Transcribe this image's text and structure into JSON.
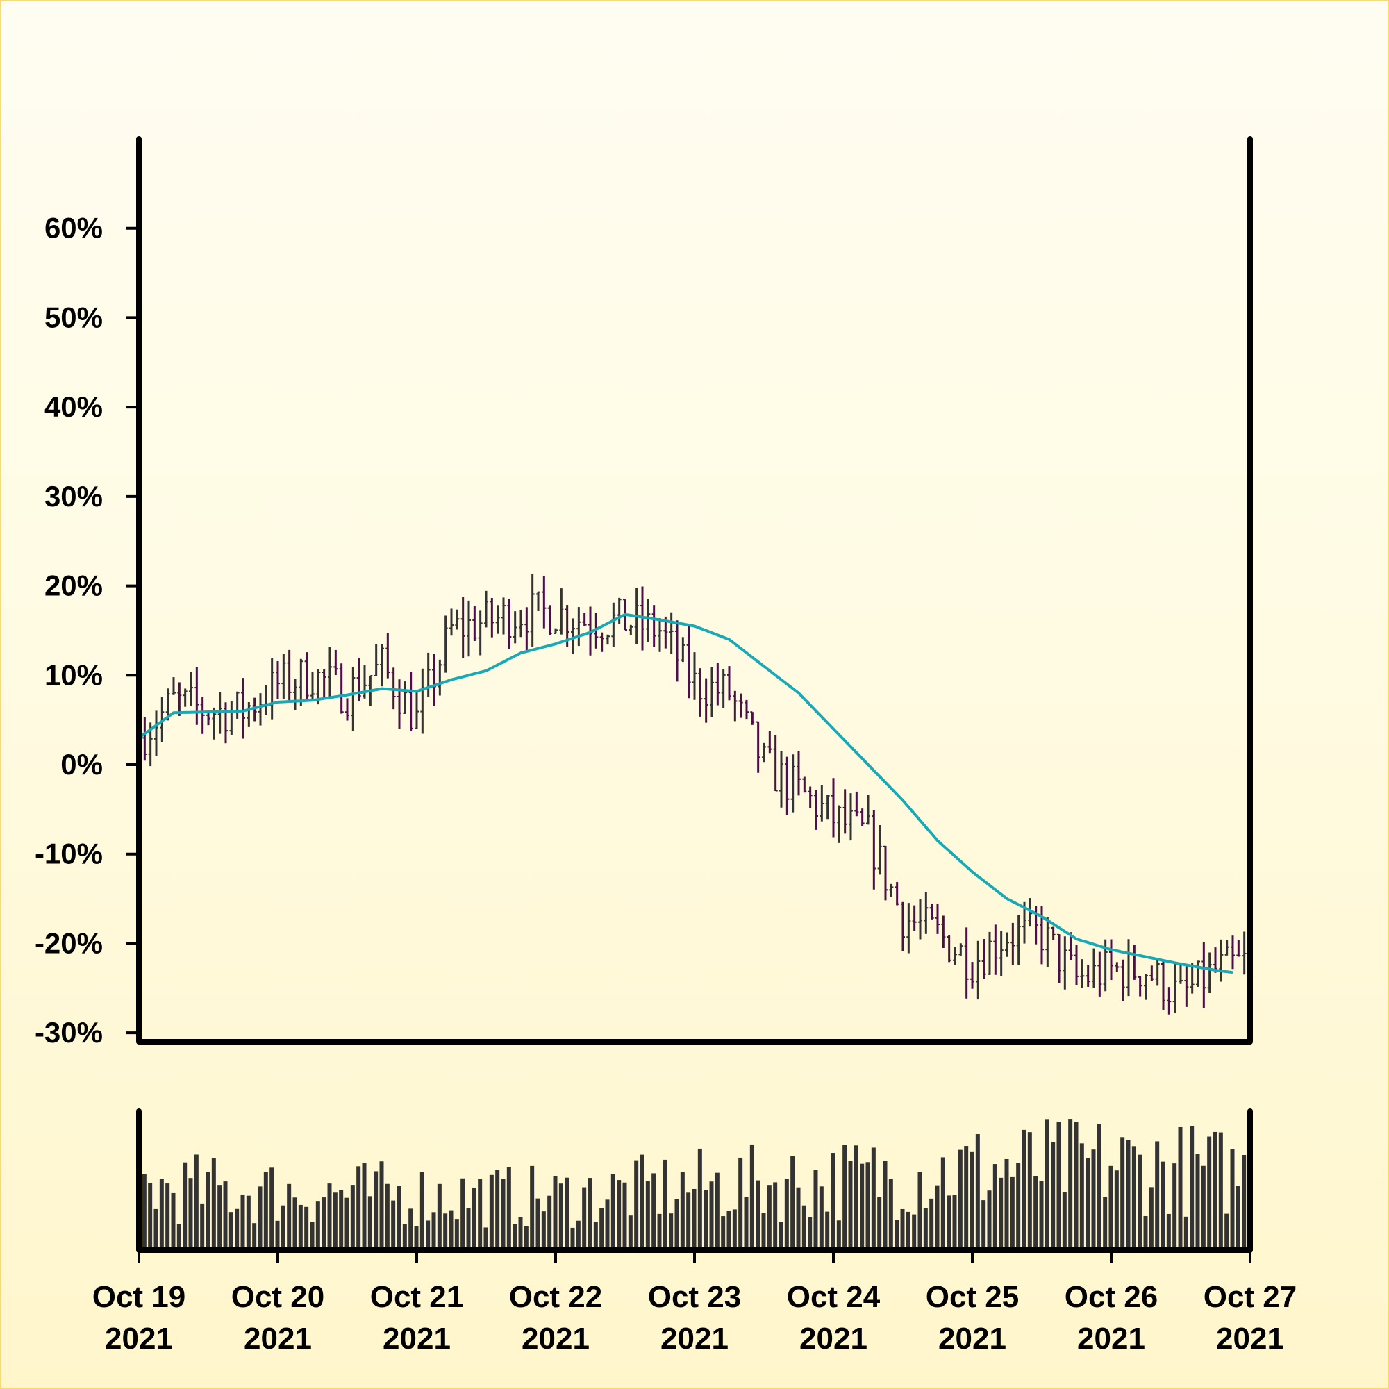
{
  "chart_data": [
    {
      "type": "ohlc",
      "y_axis": {
        "format": "percent",
        "ylim": [
          -31,
          70
        ],
        "ticks": [
          -30,
          -20,
          -10,
          0,
          10,
          20,
          30,
          40,
          50,
          60
        ],
        "tick_labels": [
          "-30%",
          "-20%",
          "-10%",
          "0%",
          "10%",
          "20%",
          "30%",
          "40%",
          "50%",
          "60%"
        ]
      },
      "x_axis": {
        "range": [
          "2021-10-19 00:00",
          "2021-10-27 00:00"
        ],
        "ticks": [
          "2021-10-19",
          "2021-10-20",
          "2021-10-21",
          "2021-10-22",
          "2021-10-23",
          "2021-10-24",
          "2021-10-25",
          "2021-10-26",
          "2021-10-27"
        ],
        "tick_labels": [
          [
            "Oct 19",
            "2021"
          ],
          [
            "Oct 20",
            "2021"
          ],
          [
            "Oct 21",
            "2021"
          ],
          [
            "Oct 22",
            "2021"
          ],
          [
            "Oct 23",
            "2021"
          ],
          [
            "Oct 24",
            "2021"
          ],
          [
            "Oct 25",
            "2021"
          ],
          [
            "Oct 26",
            "2021"
          ],
          [
            "Oct 27",
            "2021"
          ]
        ]
      },
      "bar_interval_hours": 1,
      "close_path_key_points": [
        [
          "2021-10-19 00:00",
          3
        ],
        [
          "2021-10-19 06:00",
          7
        ],
        [
          "2021-10-19 12:00",
          6
        ],
        [
          "2021-10-19 18:00",
          6
        ],
        [
          "2021-10-20 00:00",
          9
        ],
        [
          "2021-10-20 06:00",
          10
        ],
        [
          "2021-10-20 12:00",
          8
        ],
        [
          "2021-10-20 18:00",
          11
        ],
        [
          "2021-10-21 00:00",
          5
        ],
        [
          "2021-10-21 06:00",
          15
        ],
        [
          "2021-10-21 12:00",
          16
        ],
        [
          "2021-10-21 18:00",
          17
        ],
        [
          "2021-10-22 00:00",
          17
        ],
        [
          "2021-10-22 06:00",
          16
        ],
        [
          "2021-10-22 12:00",
          16
        ],
        [
          "2021-10-22 18:00",
          15
        ],
        [
          "2021-10-23 00:00",
          9
        ],
        [
          "2021-10-23 06:00",
          8
        ],
        [
          "2021-10-23 12:00",
          0
        ],
        [
          "2021-10-23 18:00",
          -3
        ],
        [
          "2021-10-24 00:00",
          -6
        ],
        [
          "2021-10-24 06:00",
          -8
        ],
        [
          "2021-10-24 12:00",
          -17
        ],
        [
          "2021-10-24 18:00",
          -19
        ],
        [
          "2021-10-25 00:00",
          -22
        ],
        [
          "2021-10-25 06:00",
          -19
        ],
        [
          "2021-10-25 12:00",
          -19
        ],
        [
          "2021-10-25 18:00",
          -24
        ],
        [
          "2021-10-26 00:00",
          -23
        ],
        [
          "2021-10-26 06:00",
          -23
        ],
        [
          "2021-10-26 12:00",
          -26
        ],
        [
          "2021-10-26 18:00",
          -23
        ],
        [
          "2021-10-27 00:00",
          -22
        ]
      ],
      "moving_average": {
        "key_points": [
          [
            "2021-10-19 00:00",
            3
          ],
          [
            "2021-10-19 06:00",
            5.8
          ],
          [
            "2021-10-19 18:00",
            6
          ],
          [
            "2021-10-20 00:00",
            7
          ],
          [
            "2021-10-20 06:00",
            7.2
          ],
          [
            "2021-10-20 12:00",
            7.8
          ],
          [
            "2021-10-20 18:00",
            8.5
          ],
          [
            "2021-10-21 00:00",
            8.2
          ],
          [
            "2021-10-21 06:00",
            9.5
          ],
          [
            "2021-10-21 12:00",
            10.5
          ],
          [
            "2021-10-21 18:00",
            12.5
          ],
          [
            "2021-10-22 00:00",
            13.5
          ],
          [
            "2021-10-22 06:00",
            14.8
          ],
          [
            "2021-10-22 12:00",
            16.8
          ],
          [
            "2021-10-22 18:00",
            16.2
          ],
          [
            "2021-10-23 00:00",
            15.5
          ],
          [
            "2021-10-23 06:00",
            14
          ],
          [
            "2021-10-23 12:00",
            11
          ],
          [
            "2021-10-23 18:00",
            8
          ],
          [
            "2021-10-24 00:00",
            4
          ],
          [
            "2021-10-24 06:00",
            0
          ],
          [
            "2021-10-24 12:00",
            -4
          ],
          [
            "2021-10-24 18:00",
            -8.5
          ],
          [
            "2021-10-25 00:00",
            -12
          ],
          [
            "2021-10-25 06:00",
            -15
          ],
          [
            "2021-10-25 12:00",
            -17
          ],
          [
            "2021-10-25 18:00",
            -19.5
          ],
          [
            "2021-10-26 00:00",
            -20.7
          ],
          [
            "2021-10-26 06:00",
            -21.5
          ],
          [
            "2021-10-26 12:00",
            -22.3
          ],
          [
            "2021-10-26 18:00",
            -23
          ],
          [
            "2021-10-27 00:00",
            -23.5
          ]
        ]
      },
      "colors": {
        "up_bar": "#333333",
        "down_bar": "#4b1048",
        "moving_average": "#17a9b5",
        "axis": "#000000"
      }
    },
    {
      "type": "bar",
      "name": "volume",
      "shares_x_axis": true,
      "bar_interval_hours": 1,
      "relative_level_key_points": [
        [
          "2021-10-19 00:00",
          0.45
        ],
        [
          "2021-10-20 00:00",
          0.42
        ],
        [
          "2021-10-21 00:00",
          0.4
        ],
        [
          "2021-10-22 00:00",
          0.38
        ],
        [
          "2021-10-23 00:00",
          0.46
        ],
        [
          "2021-10-24 00:00",
          0.5
        ],
        [
          "2021-10-25 00:00",
          0.58
        ],
        [
          "2021-10-26 00:00",
          0.62
        ],
        [
          "2021-10-27 00:00",
          0.55
        ]
      ],
      "colors": {
        "bar": "#333333"
      }
    }
  ]
}
